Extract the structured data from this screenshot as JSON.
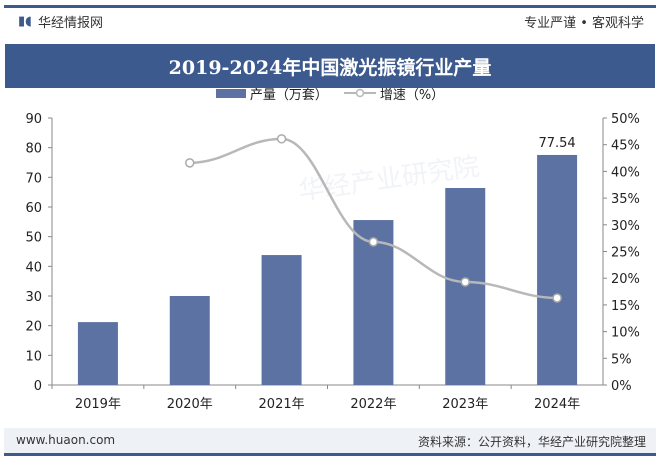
{
  "header": {
    "brand": "华经情报网",
    "slogan": "专业严谨 • 客观科学"
  },
  "footer": {
    "url": "www.huaon.com",
    "source": "资料来源：公开资料，华经产业研究院整理"
  },
  "watermark": "华经产业研究院",
  "colors": {
    "bar": "#5b72a3",
    "line": "#b8b8b8",
    "title_bg": "#3d5a8e"
  },
  "chart_data": {
    "type": "bar",
    "title": "2019-2024年中国激光振镜行业产量",
    "categories": [
      "2019年",
      "2020年",
      "2021年",
      "2022年",
      "2023年",
      "2024年"
    ],
    "series": [
      {
        "name": "产量（万套）",
        "type": "bar",
        "axis": "left",
        "values": [
          21.2,
          30.0,
          43.8,
          55.6,
          66.4,
          77.54
        ]
      },
      {
        "name": "增速（%）",
        "type": "line",
        "axis": "right",
        "values": [
          null,
          41.6,
          46.1,
          26.8,
          19.3,
          16.3
        ]
      }
    ],
    "data_labels": [
      {
        "category": "2024年",
        "text": "77.54"
      }
    ],
    "ylim": [
      0,
      90
    ],
    "yticks": [
      0,
      10,
      20,
      30,
      40,
      50,
      60,
      70,
      80,
      90
    ],
    "y2lim": [
      0,
      50
    ],
    "y2ticks": [
      "0%",
      "5%",
      "10%",
      "15%",
      "20%",
      "25%",
      "30%",
      "35%",
      "40%",
      "45%",
      "50%"
    ],
    "legend": "top-center",
    "grid": false
  }
}
